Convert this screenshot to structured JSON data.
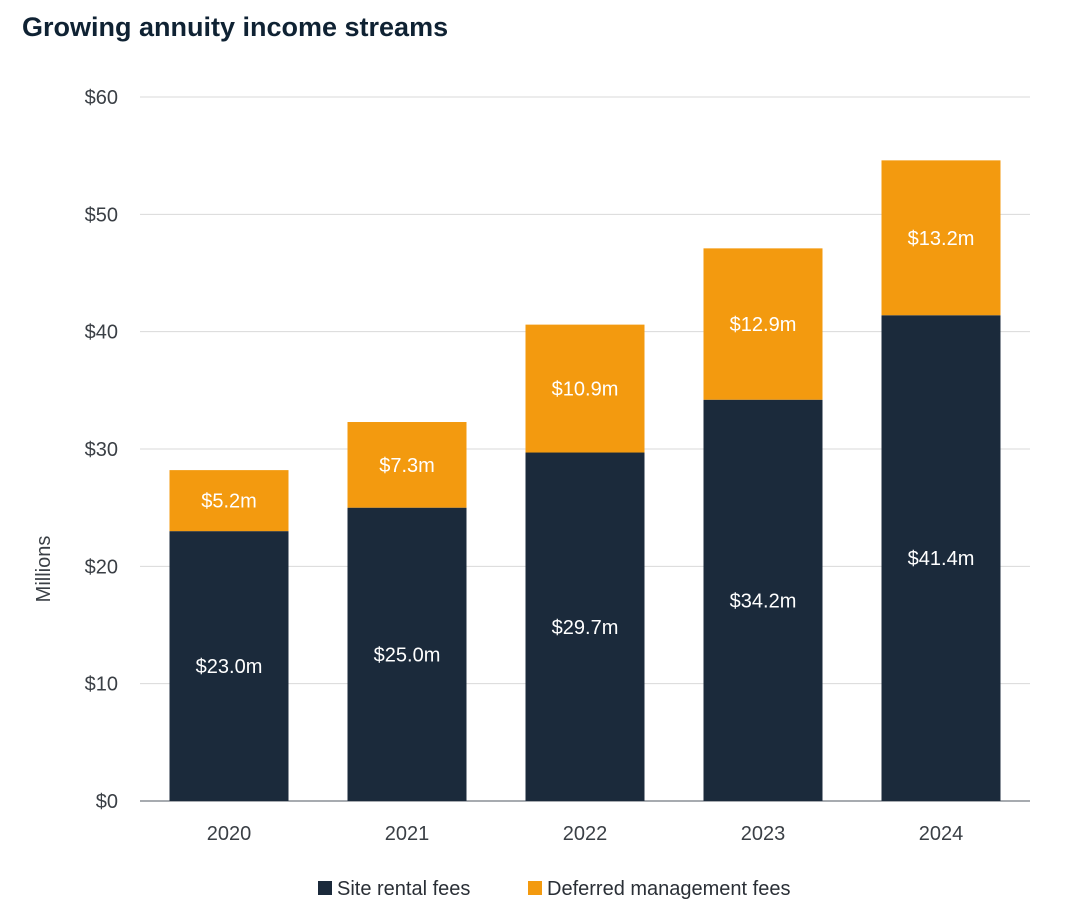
{
  "chart_data": {
    "type": "bar",
    "stacked": true,
    "title": "Growing annuity income streams",
    "xlabel": "",
    "ylabel": "Millions",
    "ylim": [
      0,
      60
    ],
    "yticks": [
      0,
      10,
      20,
      30,
      40,
      50,
      60
    ],
    "ytick_labels": [
      "$0",
      "$10",
      "$20",
      "$30",
      "$40",
      "$50",
      "$60"
    ],
    "grid": true,
    "legend_position": "bottom",
    "categories": [
      "2020",
      "2021",
      "2022",
      "2023",
      "2024"
    ],
    "series": [
      {
        "name": "Site rental fees",
        "color": "#1b2a3b",
        "values": [
          23.0,
          25.0,
          29.7,
          34.2,
          41.4
        ],
        "labels": [
          "$23.0m",
          "$25.0m",
          "$29.7m",
          "$34.2m",
          "$41.4m"
        ]
      },
      {
        "name": "Deferred management fees",
        "color": "#f39a0f",
        "values": [
          5.2,
          7.3,
          10.9,
          12.9,
          13.2
        ],
        "labels": [
          "$5.2m",
          "$7.3m",
          "$10.9m",
          "$12.9m",
          "$13.2m"
        ]
      }
    ]
  }
}
